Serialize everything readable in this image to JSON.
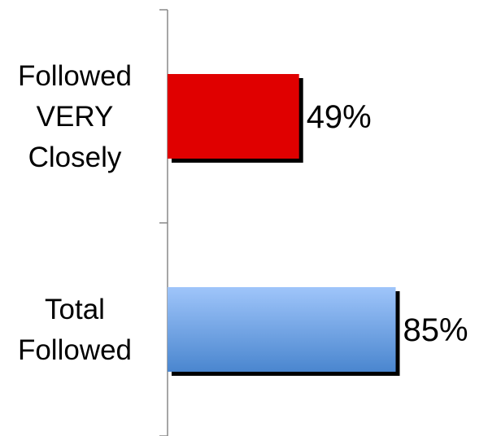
{
  "chart_data": {
    "type": "bar",
    "orientation": "horizontal",
    "categories": [
      [
        "Followed",
        "VERY",
        "Closely"
      ],
      [
        "Total",
        "Followed"
      ]
    ],
    "values": [
      49,
      85
    ],
    "value_labels": [
      "49%",
      "85%"
    ],
    "xlim": [
      0,
      100
    ],
    "grid": false,
    "legend": "none",
    "colors": {
      "bar_1": "#e00000",
      "bar_2_top": "#9fc5fa",
      "bar_2_bottom": "#4a86cf",
      "shadow": "#000000",
      "axis": "#888888"
    }
  }
}
